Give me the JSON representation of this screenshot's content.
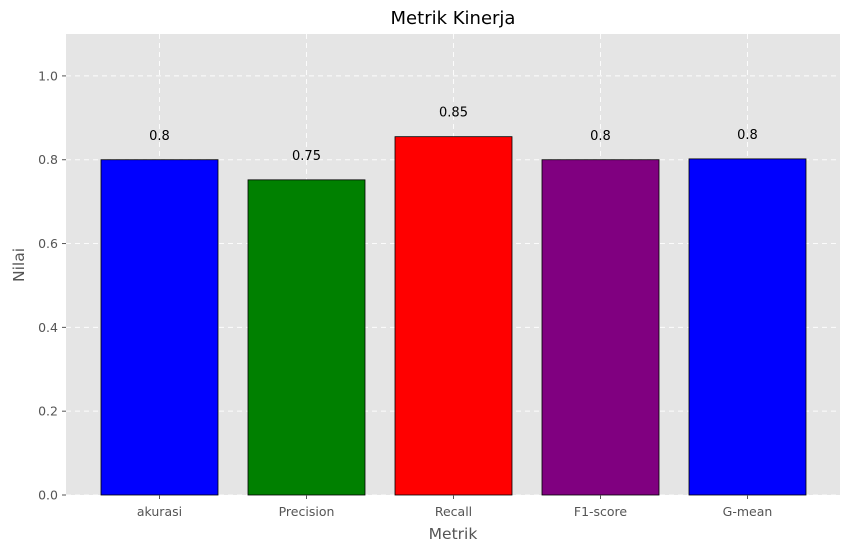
{
  "chart_data": {
    "type": "bar",
    "title": "Metrik Kinerja",
    "xlabel": "Metrik",
    "ylabel": "Nilai",
    "categories": [
      "akurasi",
      "Precision",
      "Recall",
      "F1-score",
      "G-mean"
    ],
    "values": [
      0.8,
      0.752,
      0.855,
      0.8,
      0.802
    ],
    "value_labels": [
      "0.8",
      "0.75",
      "0.85",
      "0.8",
      "0.8"
    ],
    "colors": [
      "#0000ff",
      "#008000",
      "#ff0000",
      "#800080",
      "#0000ff"
    ],
    "ylim": [
      0,
      1.1
    ],
    "yticks": [
      0.0,
      0.2,
      0.4,
      0.6,
      0.8,
      1.0
    ],
    "ytick_labels": [
      "0.0",
      "0.2",
      "0.4",
      "0.6",
      "0.8",
      "1.0"
    ],
    "grid": true,
    "grid_style": "dashed",
    "background": "#e5e5e5"
  }
}
